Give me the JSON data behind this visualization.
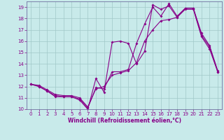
{
  "title": "",
  "xlabel": "Windchill (Refroidissement éolien,°C)",
  "ylabel": "",
  "background_color": "#c8eaea",
  "grid_color": "#a0c8c8",
  "line_color": "#880088",
  "x_min": -0.5,
  "x_max": 23.5,
  "y_min": 10,
  "y_max": 19.5,
  "x_ticks": [
    0,
    1,
    2,
    3,
    4,
    5,
    6,
    7,
    8,
    9,
    10,
    11,
    12,
    13,
    14,
    15,
    16,
    17,
    18,
    19,
    20,
    21,
    22,
    23
  ],
  "y_ticks": [
    10,
    11,
    12,
    13,
    14,
    15,
    16,
    17,
    18,
    19
  ],
  "hours": [
    0,
    1,
    2,
    3,
    4,
    5,
    6,
    7,
    8,
    9,
    10,
    11,
    12,
    13,
    14,
    15,
    16,
    17,
    18,
    19,
    20,
    21,
    22,
    23
  ],
  "line1": [
    12.2,
    12.0,
    11.6,
    11.1,
    11.1,
    11.1,
    10.8,
    10.0,
    12.7,
    11.5,
    15.9,
    16.0,
    15.8,
    14.0,
    15.1,
    19.2,
    18.8,
    19.1,
    18.1,
    18.8,
    18.8,
    16.4,
    15.3,
    13.3
  ],
  "line2": [
    12.2,
    12.0,
    11.6,
    11.2,
    11.1,
    11.1,
    10.9,
    10.1,
    11.9,
    11.8,
    13.3,
    13.3,
    13.5,
    15.8,
    17.5,
    19.0,
    18.2,
    19.3,
    18.2,
    18.9,
    18.9,
    16.5,
    15.5,
    13.3
  ],
  "line3": [
    12.2,
    12.1,
    11.7,
    11.3,
    11.2,
    11.2,
    11.0,
    10.2,
    11.8,
    12.0,
    13.0,
    13.2,
    13.4,
    14.1,
    16.0,
    17.0,
    17.8,
    17.9,
    18.1,
    18.9,
    18.9,
    16.7,
    15.6,
    13.4
  ]
}
